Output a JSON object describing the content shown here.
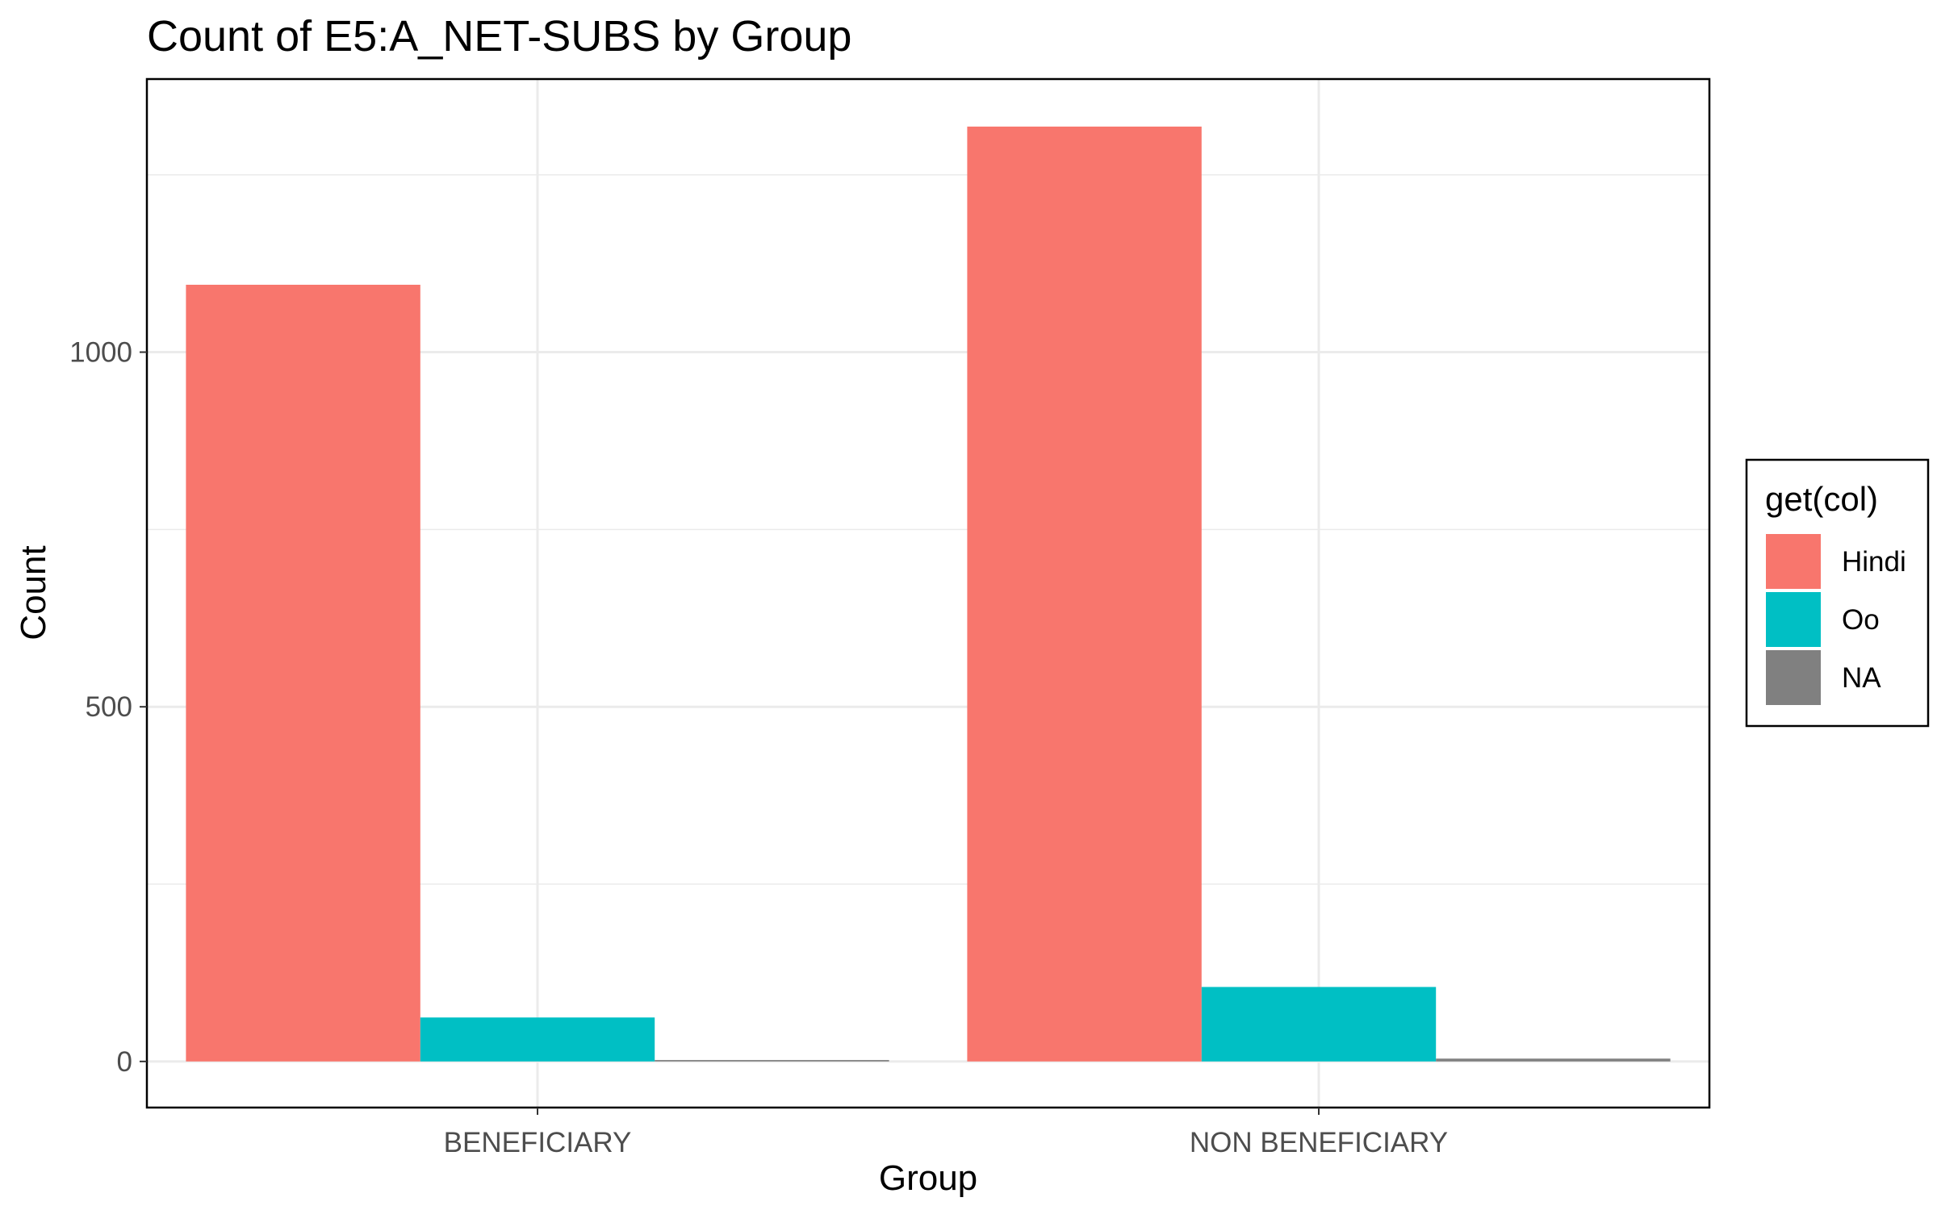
{
  "chart_data": {
    "type": "bar",
    "title": "Count of E5:A_NET-SUBS by Group",
    "xlabel": "Group",
    "ylabel": "Count",
    "categories": [
      "BENEFICIARY",
      "NON BENEFICIARY"
    ],
    "series": [
      {
        "name": "Hindi",
        "color": "#F8766D",
        "values": [
          1095,
          1318
        ]
      },
      {
        "name": "Oo",
        "color": "#00BFC4",
        "values": [
          62,
          105
        ]
      },
      {
        "name": "NA",
        "color": "#808080",
        "values": [
          2,
          4
        ]
      }
    ],
    "yticks": [
      0,
      500,
      1000
    ],
    "ylim": [
      -65,
      1385
    ],
    "grid": true,
    "legend": {
      "title": "get(col)",
      "position": "right"
    }
  }
}
